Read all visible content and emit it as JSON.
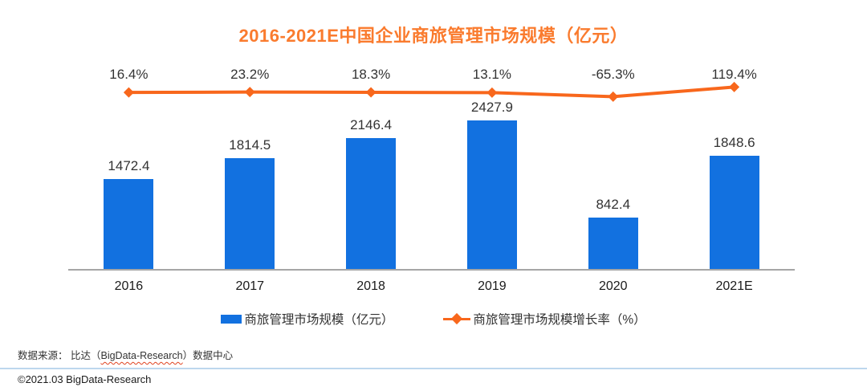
{
  "title": "2016-2021E中国企业商旅管理市场规模（亿元）",
  "chart_data": {
    "type": "bar",
    "subtype": "bar-line-combo",
    "title": "2016-2021E中国企业商旅管理市场规模（亿元）",
    "categories": [
      "2016",
      "2017",
      "2018",
      "2019",
      "2020",
      "2021E"
    ],
    "series": [
      {
        "name": "商旅管理市场规模（亿元）",
        "type": "bar",
        "axis": "primary",
        "values": [
          1472.4,
          1814.5,
          2146.4,
          2427.9,
          842.4,
          1848.6
        ],
        "labels": [
          "1472.4",
          "1814.5",
          "2146.4",
          "2427.9",
          "842.4",
          "1848.6"
        ]
      },
      {
        "name": "商旅管理市场规模增长率（%）",
        "type": "line",
        "axis": "secondary",
        "values": [
          16.4,
          23.2,
          18.3,
          13.1,
          -65.3,
          119.4
        ],
        "labels": [
          "16.4%",
          "23.2%",
          "18.3%",
          "13.1%",
          "-65.3%",
          "119.4%"
        ]
      }
    ],
    "xlabel": "",
    "ylabel": "",
    "grid": false,
    "value_labels": true,
    "legend_position": "bottom"
  },
  "legend": [
    {
      "label": "商旅管理市场规模（亿元）",
      "swatch": "blue-bar-swatch"
    },
    {
      "label": "商旅管理市场规模增长率（%）",
      "swatch": "orange-line-diamond-swatch"
    }
  ],
  "footer": {
    "source_prefix": "数据来源：  比达（",
    "source_brand": "BigData-Research",
    "source_suffix": "）数据中心",
    "copyright": "©2021.03 BigData-Research"
  },
  "colors": {
    "bar": "#1271e0",
    "line": "#f8671c",
    "title": "#fa7b2e",
    "axis": "#a6a6a6",
    "divider": "#bdd7ee",
    "label_text": "#333333"
  }
}
